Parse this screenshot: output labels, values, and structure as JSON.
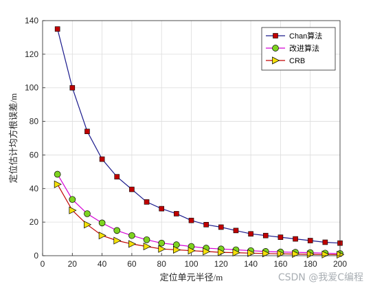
{
  "chart_data": {
    "type": "line",
    "title": "",
    "xlabel": "定位单元半径/m",
    "ylabel": "定位估计均方根误差/m",
    "xlim": [
      0,
      200
    ],
    "ylim": [
      0,
      140
    ],
    "xticks": [
      0,
      20,
      40,
      60,
      80,
      100,
      120,
      140,
      160,
      180,
      200
    ],
    "yticks": [
      0,
      20,
      40,
      60,
      80,
      100,
      120,
      140
    ],
    "grid": true,
    "legend_position": "top-right",
    "x": [
      10,
      20,
      30,
      40,
      50,
      60,
      70,
      80,
      90,
      100,
      110,
      120,
      130,
      140,
      150,
      160,
      170,
      180,
      190,
      200
    ],
    "series": [
      {
        "name": "Chan算法",
        "color": "#1a1a8c",
        "marker_color": "#c00000",
        "marker": "square",
        "values": [
          135,
          100,
          74,
          57.5,
          47,
          39.5,
          32,
          28,
          25,
          21,
          18.5,
          17,
          15,
          13,
          12,
          11,
          10,
          9,
          8,
          7.5
        ]
      },
      {
        "name": "改进算法",
        "color": "#d400d4",
        "marker_color": "#7ed321",
        "marker": "circle",
        "values": [
          48.5,
          33.5,
          25,
          19.5,
          15,
          12,
          9.5,
          7.5,
          6.5,
          5.5,
          4.5,
          4,
          3.5,
          3,
          2.5,
          2.2,
          2,
          1.8,
          1.5,
          1.3
        ]
      },
      {
        "name": "CRB",
        "color": "#c00000",
        "marker_color": "#f5e10a",
        "marker": "triangle-right",
        "values": [
          42.5,
          27,
          18.5,
          12,
          9,
          7,
          5.5,
          4,
          3.5,
          3,
          2.5,
          2,
          1.8,
          1.5,
          1.3,
          1.1,
          1,
          0.8,
          0.7,
          0.6
        ]
      }
    ]
  },
  "watermark": "CSDN @我爱C编程"
}
